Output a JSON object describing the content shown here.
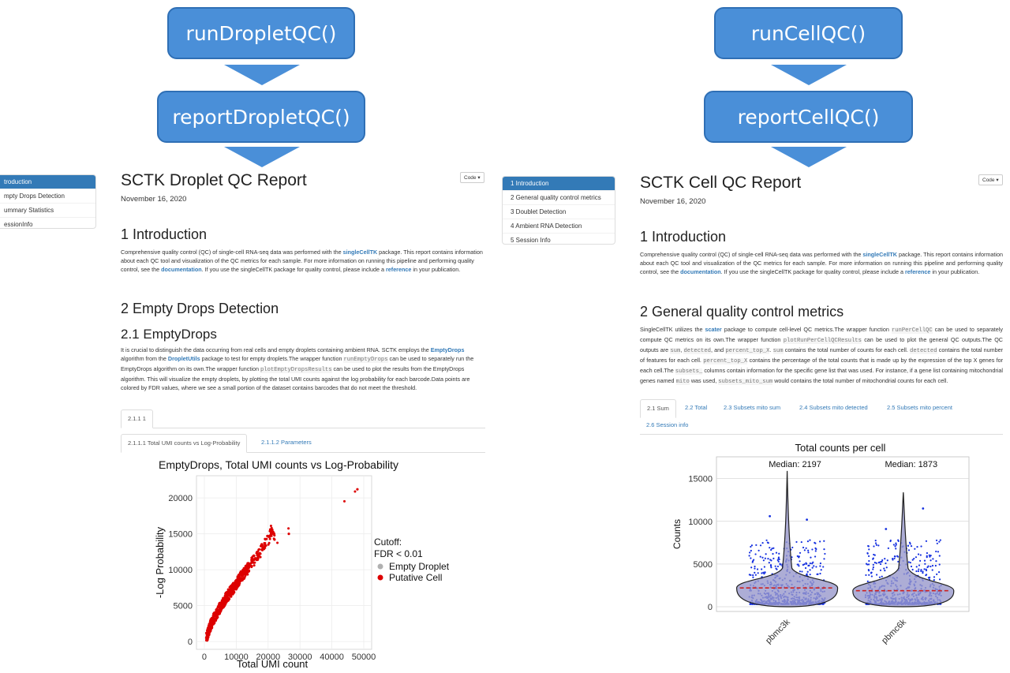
{
  "flow_left": {
    "box1": "runDropletQC()",
    "box2": "reportDropletQC()"
  },
  "flow_right": {
    "box1": "runCellQC()",
    "box2": "reportCellQC()"
  },
  "left_report": {
    "toc": [
      "troduction",
      "mpty Drops Detection",
      "ummary Statistics",
      "essionInfo"
    ],
    "code_button": "Code ▾",
    "title": "SCTK Droplet QC Report",
    "date": "November 16, 2020",
    "h_intro": "1 Introduction",
    "intro_text": {
      "p1": "Comprehensive quality control (QC) of single-cell RNA-seq data was performed with the ",
      "link1": "singleCellTK",
      "p2": " package. This report contains information about each QC tool and visualization of the QC metrics for each sample. For more information on running this pipeline and performing quality control, see the ",
      "link2": "documentation",
      "p3": ". If you use the singleCellTK package for quality control, please include a ",
      "link3": "reference",
      "p4": " in your publication."
    },
    "h_empty": "2 Empty Drops Detection",
    "h_emptydrops": "2.1 EmptyDrops",
    "ed_text": {
      "p1": "It is crucial to distinguish the data occurring from real cells and empty droplets containing ambient RNA. SCTK employs the ",
      "link1": "EmptyDrops",
      "p2": " algorithm from the ",
      "link2": "DropletUtils",
      "p3": " package to test for empty droplets.The wrapper function ",
      "code1": "runEmptyDrops",
      "p4": " can be used to separately run the EmptyDrops algorithm on its own.The wrapper function ",
      "code2": "plotEmptyDropsResults",
      "p5": " can be used to plot the results from the EmptyDrops algorithm. This will visualize the empty droplets, by plotting the total UMI counts against the log probability for each barcode.Data points are colored by FDR values, where we see a small portion of the dataset contains barcodes that do not meet the threshold."
    },
    "tab_sample": "2.1.1 1",
    "tab_a": "2.1.1.1 Total UMI counts vs Log-Probability",
    "tab_b": "2.1.1.2 Parameters"
  },
  "right_report": {
    "toc": [
      "1 Introduction",
      "2 General quality control metrics",
      "3 Doublet Detection",
      "4 Ambient RNA Detection",
      "5 Session Info"
    ],
    "code_button": "Code ▾",
    "title": "SCTK Cell QC Report",
    "date": "November 16, 2020",
    "h_intro": "1 Introduction",
    "intro_text": {
      "p1": "Comprehensive quality control (QC) of single-cell RNA-seq data was performed with the ",
      "link1": "singleCellTK",
      "p2": " package. This report contains information about each QC tool and visualization of the QC metrics for each sample. For more information on running this pipeline and performing quality control, see the ",
      "link2": "documentation",
      "p3": ". If you use the singleCellTK package for quality control, please include a ",
      "link3": "reference",
      "p4": " in your publication."
    },
    "h_general": "2 General quality control metrics",
    "gen_text": {
      "p1": "SingleCellTK utilizes the ",
      "link1": "scater",
      "p2": " package to compute cell-level QC metrics.The wrapper function ",
      "code1": "runPerCellQC",
      "p3": " can be used to separately compute QC metrics on its own.The wrapper function ",
      "code2": "plotRunPerCellQCResults",
      "p4": " can be used to plot the general QC outputs.The QC outputs are ",
      "code3": "sum",
      "p5": ", ",
      "code4": "detected",
      "p6": ", and ",
      "code5": "percent_top_X",
      "p7": ". ",
      "code6": "sum",
      "p8": " contains the total number of counts for each cell. ",
      "code7": "detected",
      "p9": " contains the total number of features for each cell. ",
      "code8": "percent_top_X",
      "p10": " contains the percentage of the total counts that is made up by the expression of the top X genes for each cell.The ",
      "code9": "subsets_",
      "p11": " columns contain information for the specific gene list that was used. For instance, if a gene list containing mitochondrial genes named ",
      "code10": "mito",
      "p12": " was used, ",
      "code11": "subsets_mito_sum",
      "p13": " would contains the total number of mitochondrial counts for each cell."
    },
    "tabs": [
      "2.1 Sum",
      "2.2 Total",
      "2.3 Subsets mito sum",
      "2.4 Subsets mito detected",
      "2.5 Subsets mito percent",
      "2.6 Session info"
    ]
  },
  "chart_data": [
    {
      "type": "scatter",
      "title": "EmptyDrops, Total UMI counts vs Log-Probability",
      "xlabel": "Total UMI count",
      "ylabel": "-Log Probability",
      "xlim": [
        0,
        50000
      ],
      "ylim": [
        0,
        22000
      ],
      "x_ticks": [
        "0",
        "10000",
        "20000",
        "30000",
        "40000",
        "50000"
      ],
      "y_ticks": [
        "0",
        "5000",
        "10000",
        "15000",
        "20000"
      ],
      "legend": {
        "title": "Cutoff:\nFDR < 0.01",
        "entries": [
          "Empty Droplet",
          "Putative Cell"
        ],
        "position": "right"
      },
      "colors": {
        "Empty Droplet": "#b0b0b0",
        "Putative Cell": "#dd0000"
      },
      "series": [
        {
          "name": "Putative Cell",
          "points": [
            [
              48000,
              21200
            ],
            [
              26500,
              15000
            ],
            [
              21000,
              15600
            ],
            [
              20500,
              14600
            ],
            [
              22000,
              14200
            ],
            [
              19000,
              13500
            ],
            [
              18000,
              12800
            ],
            [
              17000,
              12200
            ],
            [
              16000,
              11600
            ],
            [
              15000,
              11000
            ],
            [
              14000,
              10400
            ],
            [
              13000,
              9800
            ],
            [
              12000,
              9300
            ],
            [
              11000,
              8700
            ],
            [
              10000,
              8000
            ],
            [
              9000,
              7400
            ],
            [
              8000,
              6800
            ],
            [
              7000,
              6200
            ],
            [
              6000,
              5500
            ],
            [
              5000,
              4800
            ],
            [
              4000,
              4000
            ],
            [
              3000,
              3200
            ],
            [
              2000,
              2300
            ],
            [
              1500,
              1700
            ],
            [
              1000,
              1000
            ],
            [
              600,
              500
            ]
          ]
        }
      ]
    },
    {
      "type": "violin",
      "title": "Total counts per cell",
      "xlabel": "",
      "ylabel": "Counts",
      "categories": [
        "pbmc3k",
        "pbmc6k"
      ],
      "medians": [
        2197,
        1873
      ],
      "median_labels": [
        "Median: 2197",
        "Median: 1873"
      ],
      "ylim": [
        0,
        17000
      ],
      "y_ticks": [
        "0",
        "5000",
        "10000",
        "15000"
      ],
      "max_values": [
        15900,
        13400
      ],
      "colors": {
        "points": "#1530e0",
        "violin": "#9999cc",
        "median_line": "#cc2222"
      }
    }
  ]
}
